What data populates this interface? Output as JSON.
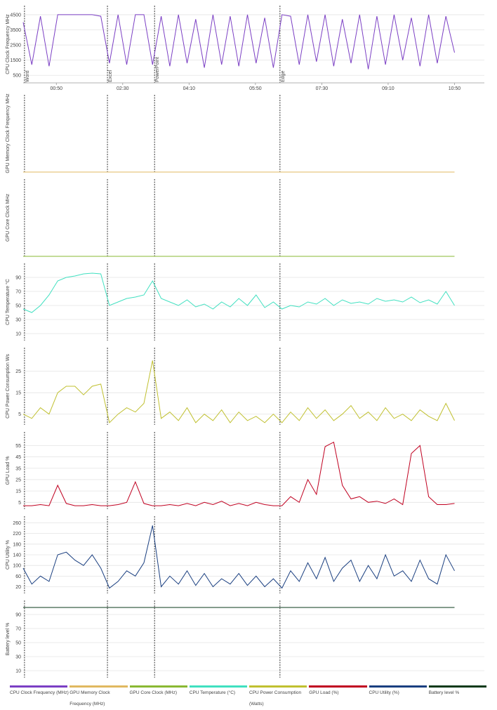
{
  "chart_data": [
    {
      "type": "line",
      "y_label": "CPU Clock Frequency MHz",
      "xlim": [
        0,
        695
      ],
      "ylim": [
        0,
        5100
      ],
      "yticks": [
        500,
        1500,
        2500,
        3500,
        4500
      ],
      "grid": true,
      "xticks": [
        {
          "value": 50,
          "label": "00:50"
        },
        {
          "value": 150,
          "label": "02:30"
        },
        {
          "value": 250,
          "label": "04:10"
        },
        {
          "value": 350,
          "label": "05:50"
        },
        {
          "value": 450,
          "label": "07:30"
        },
        {
          "value": 550,
          "label": "09:10"
        },
        {
          "value": 650,
          "label": "10:50"
        }
      ],
      "annotations": [
        {
          "x": 2,
          "label": "Word"
        },
        {
          "x": 127,
          "label": "Excel"
        },
        {
          "x": 198,
          "label": "PowerPoint"
        },
        {
          "x": 387,
          "label": "Edge"
        }
      ],
      "x": [
        0,
        13,
        26,
        39,
        52,
        65,
        78,
        91,
        104,
        117,
        130,
        143,
        156,
        169,
        182,
        195,
        208,
        221,
        234,
        247,
        260,
        273,
        286,
        299,
        312,
        325,
        338,
        351,
        364,
        377,
        390,
        403,
        416,
        429,
        442,
        455,
        468,
        481,
        494,
        507,
        520,
        533,
        546,
        559,
        572,
        585,
        598,
        611,
        624,
        637,
        650
      ],
      "series": [
        {
          "name": "CPU Clock Frequency (MHz)",
          "color": "#7b3fc4",
          "values": [
            4000,
            1200,
            4400,
            1100,
            4500,
            4500,
            4500,
            4500,
            4500,
            4400,
            1300,
            4500,
            1200,
            4500,
            4500,
            1200,
            4400,
            1100,
            4500,
            1300,
            4200,
            1000,
            4500,
            1200,
            4400,
            1100,
            4500,
            1300,
            4300,
            1000,
            4500,
            4400,
            1200,
            4500,
            1400,
            4500,
            1100,
            4200,
            1300,
            4500,
            900,
            4400,
            1200,
            4500,
            1500,
            4300,
            1100,
            4500,
            1300,
            4400,
            2000
          ]
        }
      ]
    },
    {
      "type": "line",
      "y_label": "GPU Memory Clock Frequency MHz",
      "x": [
        0,
        13,
        26,
        39,
        52,
        65,
        78,
        91,
        104,
        117,
        130,
        143,
        156,
        169,
        182,
        195,
        208,
        221,
        234,
        247,
        260,
        273,
        286,
        299,
        312,
        325,
        338,
        351,
        364,
        377,
        390,
        403,
        416,
        429,
        442,
        455,
        468,
        481,
        494,
        507,
        520,
        533,
        546,
        559,
        572,
        585,
        598,
        611,
        624,
        637,
        650
      ],
      "series": [
        {
          "name": "GPU Memory Clock Frequency (MHz)",
          "color": "#e0b860",
          "values": [
            0,
            0,
            0,
            0,
            0,
            0,
            0,
            0,
            0,
            0,
            0,
            0,
            0,
            0,
            0,
            0,
            0,
            0,
            0,
            0,
            0,
            0,
            0,
            0,
            0,
            0,
            0,
            0,
            0,
            0,
            0,
            0,
            0,
            0,
            0,
            0,
            0,
            0,
            0,
            0,
            0,
            0,
            0,
            0,
            0,
            0,
            0,
            0,
            0,
            0,
            0
          ]
        }
      ]
    },
    {
      "type": "line",
      "y_label": "GPU Core Clock MHz",
      "x": [
        0,
        13,
        26,
        39,
        52,
        65,
        78,
        91,
        104,
        117,
        130,
        143,
        156,
        169,
        182,
        195,
        208,
        221,
        234,
        247,
        260,
        273,
        286,
        299,
        312,
        325,
        338,
        351,
        364,
        377,
        390,
        403,
        416,
        429,
        442,
        455,
        468,
        481,
        494,
        507,
        520,
        533,
        546,
        559,
        572,
        585,
        598,
        611,
        624,
        637,
        650
      ],
      "series": [
        {
          "name": "GPU Core Clock (MHz)",
          "color": "#8ab833",
          "values": [
            0,
            0,
            0,
            0,
            0,
            0,
            0,
            0,
            0,
            0,
            0,
            0,
            0,
            0,
            0,
            0,
            0,
            0,
            0,
            0,
            0,
            0,
            0,
            0,
            0,
            0,
            0,
            0,
            0,
            0,
            0,
            0,
            0,
            0,
            0,
            0,
            0,
            0,
            0,
            0,
            0,
            0,
            0,
            0,
            0,
            0,
            0,
            0,
            0,
            0,
            0
          ]
        }
      ]
    },
    {
      "type": "line",
      "y_label": "CPU Temperature °C",
      "ylim": [
        0,
        110
      ],
      "yticks": [
        10,
        30,
        50,
        70,
        90
      ],
      "grid": true,
      "x": [
        0,
        13,
        26,
        39,
        52,
        65,
        78,
        91,
        104,
        117,
        130,
        143,
        156,
        169,
        182,
        195,
        208,
        221,
        234,
        247,
        260,
        273,
        286,
        299,
        312,
        325,
        338,
        351,
        364,
        377,
        390,
        403,
        416,
        429,
        442,
        455,
        468,
        481,
        494,
        507,
        520,
        533,
        546,
        559,
        572,
        585,
        598,
        611,
        624,
        637,
        650
      ],
      "series": [
        {
          "name": "CPU Temperature (°C)",
          "color": "#40e0c0",
          "values": [
            45,
            40,
            50,
            65,
            85,
            90,
            92,
            95,
            96,
            95,
            50,
            55,
            60,
            62,
            65,
            85,
            60,
            55,
            50,
            58,
            48,
            52,
            45,
            55,
            48,
            60,
            50,
            65,
            47,
            55,
            45,
            50,
            48,
            55,
            52,
            60,
            50,
            58,
            53,
            55,
            52,
            60,
            56,
            58,
            55,
            62,
            54,
            58,
            52,
            70,
            50
          ]
        }
      ]
    },
    {
      "type": "line",
      "y_label": "CPU Power Consumption Ws",
      "ylim": [
        0,
        36
      ],
      "yticks": [
        5,
        15,
        25
      ],
      "grid": true,
      "x": [
        0,
        13,
        26,
        39,
        52,
        65,
        78,
        91,
        104,
        117,
        130,
        143,
        156,
        169,
        182,
        195,
        208,
        221,
        234,
        247,
        260,
        273,
        286,
        299,
        312,
        325,
        338,
        351,
        364,
        377,
        390,
        403,
        416,
        429,
        442,
        455,
        468,
        481,
        494,
        507,
        520,
        533,
        546,
        559,
        572,
        585,
        598,
        611,
        624,
        637,
        650
      ],
      "series": [
        {
          "name": "CPU Power Consumption (Watts)",
          "color": "#c0c030",
          "values": [
            5,
            3,
            8,
            5,
            15,
            18,
            18,
            14,
            18,
            19,
            1,
            5,
            8,
            6,
            10,
            30,
            3,
            6,
            2,
            8,
            1,
            5,
            2,
            7,
            1,
            6,
            2,
            4,
            1,
            5,
            1,
            6,
            2,
            8,
            3,
            7,
            2,
            5,
            9,
            3,
            6,
            2,
            8,
            3,
            5,
            2,
            7,
            4,
            2,
            10,
            2
          ]
        }
      ]
    },
    {
      "type": "line",
      "y_label": "GPU Load %",
      "ylim": [
        -1,
        67
      ],
      "yticks": [
        5,
        15,
        25,
        35,
        45,
        55
      ],
      "grid": true,
      "x": [
        0,
        13,
        26,
        39,
        52,
        65,
        78,
        91,
        104,
        117,
        130,
        143,
        156,
        169,
        182,
        195,
        208,
        221,
        234,
        247,
        260,
        273,
        286,
        299,
        312,
        325,
        338,
        351,
        364,
        377,
        390,
        403,
        416,
        429,
        442,
        455,
        468,
        481,
        494,
        507,
        520,
        533,
        546,
        559,
        572,
        585,
        598,
        611,
        624,
        637,
        650
      ],
      "series": [
        {
          "name": "GPU Load (%)",
          "color": "#c00020",
          "values": [
            2,
            2,
            3,
            2,
            20,
            4,
            2,
            2,
            3,
            2,
            2,
            3,
            5,
            23,
            4,
            2,
            2,
            3,
            2,
            4,
            2,
            5,
            3,
            6,
            2,
            4,
            2,
            5,
            3,
            2,
            2,
            10,
            5,
            25,
            12,
            54,
            58,
            20,
            8,
            10,
            5,
            6,
            4,
            8,
            3,
            48,
            55,
            10,
            3,
            3,
            4
          ]
        }
      ]
    },
    {
      "type": "line",
      "y_label": "CPU Utility %",
      "ylim": [
        -5,
        285
      ],
      "yticks": [
        20,
        60,
        100,
        140,
        180,
        220,
        260
      ],
      "grid": true,
      "x": [
        0,
        13,
        26,
        39,
        52,
        65,
        78,
        91,
        104,
        117,
        130,
        143,
        156,
        169,
        182,
        195,
        208,
        221,
        234,
        247,
        260,
        273,
        286,
        299,
        312,
        325,
        338,
        351,
        364,
        377,
        390,
        403,
        416,
        429,
        442,
        455,
        468,
        481,
        494,
        507,
        520,
        533,
        546,
        559,
        572,
        585,
        598,
        611,
        624,
        637,
        650
      ],
      "series": [
        {
          "name": "CPU Utility (%)",
          "color": "#1a3f80",
          "values": [
            90,
            30,
            60,
            40,
            140,
            150,
            120,
            100,
            140,
            90,
            15,
            40,
            80,
            60,
            110,
            250,
            20,
            60,
            30,
            80,
            25,
            70,
            20,
            50,
            30,
            70,
            25,
            60,
            20,
            50,
            15,
            80,
            40,
            110,
            50,
            130,
            40,
            90,
            120,
            40,
            100,
            50,
            140,
            60,
            80,
            40,
            120,
            50,
            30,
            140,
            80
          ]
        }
      ]
    },
    {
      "type": "line",
      "y_label": "Battery level %",
      "ylim": [
        0,
        110
      ],
      "yticks": [
        10,
        30,
        50,
        70,
        90
      ],
      "grid": true,
      "x": [
        0,
        13,
        26,
        39,
        52,
        65,
        78,
        91,
        104,
        117,
        130,
        143,
        156,
        169,
        182,
        195,
        208,
        221,
        234,
        247,
        260,
        273,
        286,
        299,
        312,
        325,
        338,
        351,
        364,
        377,
        390,
        403,
        416,
        429,
        442,
        455,
        468,
        481,
        494,
        507,
        520,
        533,
        546,
        559,
        572,
        585,
        598,
        611,
        624,
        637,
        650
      ],
      "series": [
        {
          "name": "Battery level %",
          "color": "#0a3a1a",
          "values": [
            100,
            100,
            100,
            100,
            100,
            100,
            100,
            100,
            100,
            100,
            100,
            100,
            100,
            100,
            100,
            100,
            100,
            100,
            100,
            100,
            100,
            100,
            100,
            100,
            100,
            100,
            100,
            100,
            100,
            100,
            100,
            100,
            100,
            100,
            100,
            100,
            100,
            100,
            100,
            100,
            100,
            100,
            100,
            100,
            100,
            100,
            100,
            100,
            100,
            100,
            100
          ]
        }
      ]
    }
  ]
}
